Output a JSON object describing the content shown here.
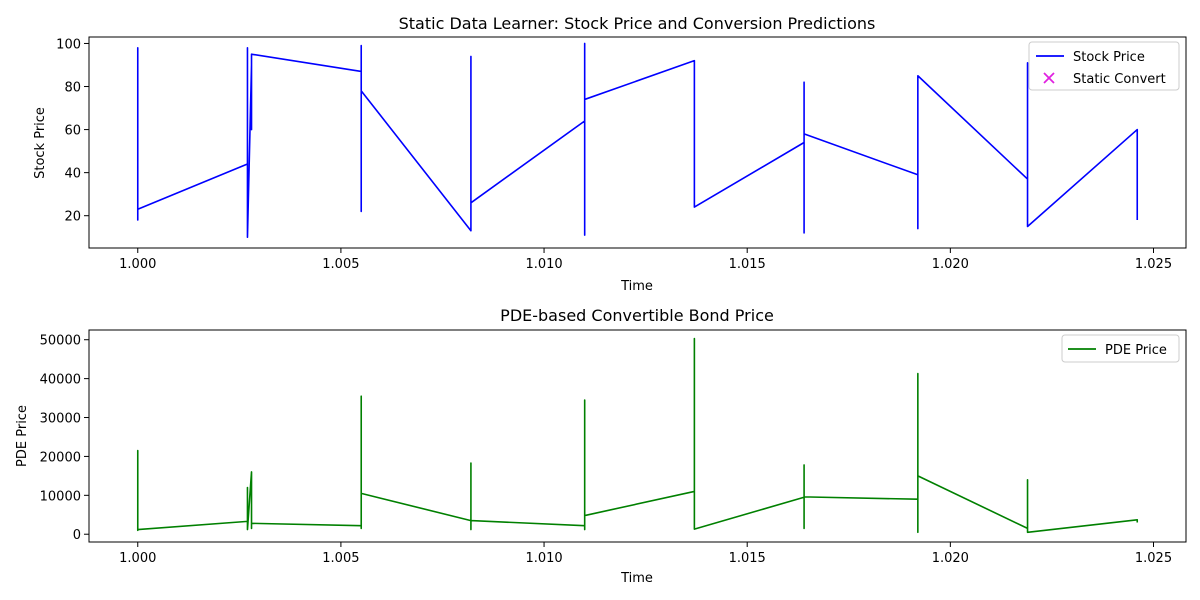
{
  "chart_data": [
    {
      "type": "line",
      "title": "Static Data Learner: Stock Price and Conversion Predictions",
      "xlabel": "Time",
      "ylabel": "Stock Price",
      "xlim": [
        0.9988,
        1.0258
      ],
      "ylim": [
        5,
        103
      ],
      "xticks": [
        "1.000",
        "1.005",
        "1.010",
        "1.015",
        "1.020",
        "1.025"
      ],
      "xtick_values": [
        1.0,
        1.005,
        1.01,
        1.015,
        1.02,
        1.025
      ],
      "yticks": [
        "20",
        "40",
        "60",
        "80",
        "100"
      ],
      "ytick_values": [
        20,
        40,
        60,
        80,
        100
      ],
      "grid": false,
      "legend_position": "top-right",
      "legend": [
        {
          "label": "Stock Price",
          "kind": "line",
          "color": "#0000ff"
        },
        {
          "label": "Static Convert",
          "kind": "marker-x",
          "color": "#e020e0"
        }
      ],
      "series": [
        {
          "name": "Stock Price",
          "color": "#0000ff",
          "x": [
            1.0,
            1.0,
            1.0,
            1.0,
            1.0,
            1.0,
            1.0,
            1.0,
            1.0027,
            1.0027,
            1.0027,
            1.0027,
            1.0028,
            1.0028,
            1.0028,
            1.0055,
            1.0055,
            1.0055,
            1.0055,
            1.0055,
            1.0055,
            1.0055,
            1.0082,
            1.0082,
            1.0082,
            1.0082,
            1.0082,
            1.0082,
            1.011,
            1.011,
            1.011,
            1.011,
            1.011,
            1.011,
            1.011,
            1.0137,
            1.0137,
            1.0137,
            1.0137,
            1.0137,
            1.0164,
            1.0164,
            1.0164,
            1.0164,
            1.0164,
            1.0164,
            1.0192,
            1.0192,
            1.0192,
            1.0192,
            1.0192,
            1.0219,
            1.0219,
            1.0219,
            1.0219,
            1.0219,
            1.0246,
            1.0246
          ],
          "y": [
            22,
            98,
            18,
            80,
            45,
            60,
            30,
            23,
            44,
            20,
            98,
            10,
            90,
            60,
            95,
            87,
            98,
            22,
            99,
            40,
            23,
            78,
            13,
            94,
            15,
            92,
            14,
            26,
            64,
            11,
            100,
            15,
            87,
            18,
            74,
            92,
            24,
            83,
            50,
            24,
            54,
            12,
            82,
            22,
            78,
            58,
            39,
            14,
            77,
            15,
            85,
            37,
            91,
            15,
            90,
            15,
            60,
            18
          ]
        },
        {
          "name": "Static Convert",
          "color": "#e020e0",
          "x": [],
          "y": []
        }
      ]
    },
    {
      "type": "line",
      "title": "PDE-based Convertible Bond Price",
      "xlabel": "Time",
      "ylabel": "PDE Price",
      "xlim": [
        0.9988,
        1.0258
      ],
      "ylim": [
        -2000,
        52500
      ],
      "xticks": [
        "1.000",
        "1.005",
        "1.010",
        "1.015",
        "1.020",
        "1.025"
      ],
      "xtick_values": [
        1.0,
        1.005,
        1.01,
        1.015,
        1.02,
        1.025
      ],
      "yticks": [
        "0",
        "10000",
        "20000",
        "30000",
        "40000",
        "50000"
      ],
      "ytick_values": [
        0,
        10000,
        20000,
        30000,
        40000,
        50000
      ],
      "grid": false,
      "legend_position": "top-right",
      "legend": [
        {
          "label": "PDE Price",
          "kind": "line",
          "color": "#008000"
        }
      ],
      "series": [
        {
          "name": "PDE Price",
          "color": "#008000",
          "x": [
            1.0,
            1.0,
            1.0,
            1.0,
            1.0,
            1.0027,
            1.0027,
            1.0027,
            1.0028,
            1.0028,
            1.0028,
            1.0055,
            1.0055,
            1.0055,
            1.0055,
            1.0055,
            1.0055,
            1.0082,
            1.0082,
            1.0082,
            1.0082,
            1.0082,
            1.011,
            1.011,
            1.011,
            1.011,
            1.011,
            1.0137,
            1.0137,
            1.0137,
            1.0137,
            1.0137,
            1.0164,
            1.0164,
            1.0164,
            1.0164,
            1.0164,
            1.0192,
            1.0192,
            1.0192,
            1.0192,
            1.0192,
            1.0219,
            1.0219,
            1.0219,
            1.0219,
            1.0246,
            1.0246
          ],
          "y": [
            20000,
            21500,
            1000,
            8000,
            1200,
            3300,
            12000,
            1200,
            16000,
            1500,
            2800,
            2200,
            35500,
            1500,
            24000,
            34000,
            10500,
            3500,
            18300,
            1200,
            17000,
            3500,
            2200,
            34500,
            1200,
            10000,
            4800,
            11000,
            50300,
            3000,
            23000,
            1300,
            9500,
            17800,
            1500,
            17000,
            9600,
            9000,
            41300,
            500,
            40000,
            15000,
            1500,
            14000,
            1000,
            500,
            3700,
            3000
          ]
        }
      ]
    }
  ]
}
